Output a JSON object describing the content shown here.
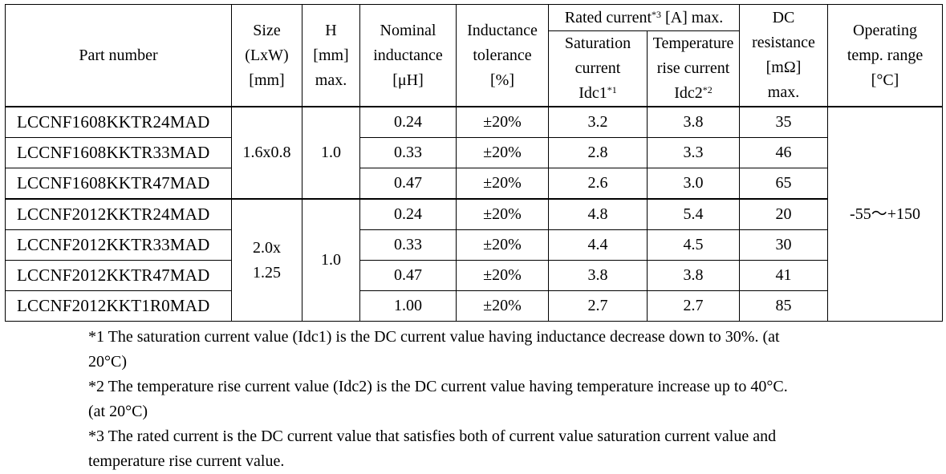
{
  "headers": {
    "part_number": "Part number",
    "size": [
      "Size",
      "(LxW)",
      "[mm]"
    ],
    "h": [
      "H",
      "[mm]",
      "max."
    ],
    "nominal": [
      "Nominal",
      "inductance",
      "[μH]"
    ],
    "tolerance": [
      "Inductance",
      "tolerance",
      "[%]"
    ],
    "rated_main": "Rated current",
    "rated_main_sup": "*3",
    "rated_main_unit": " [A] max.",
    "saturation": [
      "Saturation",
      "current",
      "Idc1"
    ],
    "saturation_sup": "*1",
    "temperature": [
      "Temperature",
      "rise current",
      "Idc2"
    ],
    "temperature_sup": "*2",
    "dc": [
      "DC",
      "resistance",
      "[mΩ]",
      "max."
    ],
    "operating": [
      "Operating",
      "temp. range",
      "[°C]"
    ]
  },
  "groups": [
    {
      "size": [
        "1.6x0.8"
      ],
      "h": "1.0"
    },
    {
      "size": [
        "2.0x",
        "1.25"
      ],
      "h": "1.0"
    }
  ],
  "operating_range": "-55～+150",
  "rows": [
    {
      "part": "LCCNF1608KKTR24MAD",
      "nominal": "0.24",
      "tolerance": "±20%",
      "idc1": "3.2",
      "idc2": "3.8",
      "dc": "35"
    },
    {
      "part": "LCCNF1608KKTR33MAD",
      "nominal": "0.33",
      "tolerance": "±20%",
      "idc1": "2.8",
      "idc2": "3.3",
      "dc": "46"
    },
    {
      "part": "LCCNF1608KKTR47MAD",
      "nominal": "0.47",
      "tolerance": "±20%",
      "idc1": "2.6",
      "idc2": "3.0",
      "dc": "65"
    },
    {
      "part": "LCCNF2012KKTR24MAD",
      "nominal": "0.24",
      "tolerance": "±20%",
      "idc1": "4.8",
      "idc2": "5.4",
      "dc": "20"
    },
    {
      "part": "LCCNF2012KKTR33MAD",
      "nominal": "0.33",
      "tolerance": "±20%",
      "idc1": "4.4",
      "idc2": "4.5",
      "dc": "30"
    },
    {
      "part": "LCCNF2012KKTR47MAD",
      "nominal": "0.47",
      "tolerance": "±20%",
      "idc1": "3.8",
      "idc2": "3.8",
      "dc": "41"
    },
    {
      "part": "LCCNF2012KKT1R0MAD",
      "nominal": "1.00",
      "tolerance": "±20%",
      "idc1": "2.7",
      "idc2": "2.7",
      "dc": "85"
    }
  ],
  "footnotes": [
    "*1 The saturation current value (Idc1) is the DC current value having inductance decrease down to 30%. (at",
    "20°C)",
    "*2 The temperature rise current value (Idc2) is the DC current value having temperature increase up to 40°C.",
    "(at 20°C)",
    "*3 The rated current is the DC current value that satisfies both of current value saturation current value and",
    "temperature rise current value."
  ]
}
